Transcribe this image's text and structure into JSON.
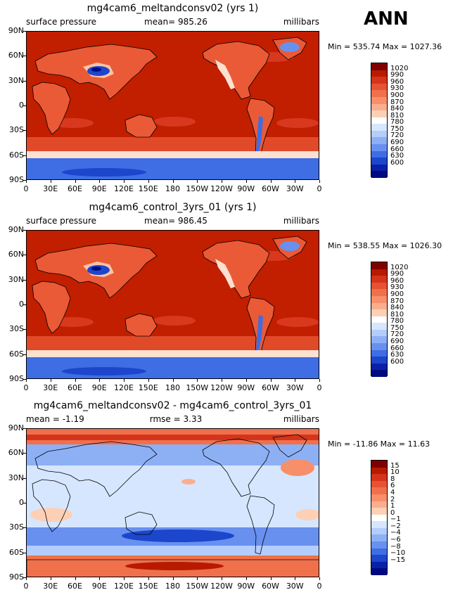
{
  "season": "ANN",
  "axes": {
    "lat_labels": [
      "90N",
      "60N",
      "30N",
      "0",
      "30S",
      "60S",
      "90S"
    ],
    "lon_labels": [
      "0",
      "30E",
      "60E",
      "90E",
      "120E",
      "150E",
      "180",
      "150W",
      "120W",
      "90W",
      "60W",
      "30W",
      "0"
    ]
  },
  "panels": [
    {
      "title": "mg4cam6_meltandconsv02 (yrs 1)",
      "left_label": "surface pressure",
      "center_label": "mean=  985.26",
      "right_label": "millibars",
      "minmax": "Min = 535.74  Max = 1027.36",
      "kind": "field",
      "legend_levels": [
        "1020",
        "990",
        "960",
        "930",
        "900",
        "870",
        "840",
        "810",
        "780",
        "750",
        "720",
        "690",
        "660",
        "630",
        "600"
      ],
      "legend_colors": [
        "#800000",
        "#b81a00",
        "#d4341c",
        "#e85232",
        "#f0704c",
        "#f78f6a",
        "#fbae8e",
        "#fdd0b6",
        "#ffffff",
        "#d6e6ff",
        "#b3cdfc",
        "#8db0f5",
        "#6890ef",
        "#3f6de4",
        "#1c46cc",
        "#0a20a8",
        "#000a80"
      ]
    },
    {
      "title": "mg4cam6_control_3yrs_01 (yrs 1)",
      "left_label": "surface pressure",
      "center_label": "mean=  986.45",
      "right_label": "millibars",
      "minmax": "Min = 538.55  Max = 1026.30",
      "kind": "field",
      "legend_levels": [
        "1020",
        "990",
        "960",
        "930",
        "900",
        "870",
        "840",
        "810",
        "780",
        "750",
        "720",
        "690",
        "660",
        "630",
        "600"
      ],
      "legend_colors": [
        "#800000",
        "#b81a00",
        "#d4341c",
        "#e85232",
        "#f0704c",
        "#f78f6a",
        "#fbae8e",
        "#fdd0b6",
        "#ffffff",
        "#d6e6ff",
        "#b3cdfc",
        "#8db0f5",
        "#6890ef",
        "#3f6de4",
        "#1c46cc",
        "#0a20a8",
        "#000a80"
      ]
    },
    {
      "title": "mg4cam6_meltandconsv02 - mg4cam6_control_3yrs_01",
      "left_label": "mean =   -1.19",
      "center_label": "rmse =    3.33",
      "right_label": "millibars",
      "minmax": "Min = -11.86  Max =  11.63",
      "kind": "diff",
      "legend_levels": [
        "15",
        "10",
        "8",
        "6",
        "4",
        "2",
        "1",
        "0",
        "−1",
        "−2",
        "−4",
        "−6",
        "−8",
        "−10",
        "−15"
      ],
      "legend_colors": [
        "#800000",
        "#b81a00",
        "#d4341c",
        "#e85232",
        "#f0704c",
        "#f78f6a",
        "#fbae8e",
        "#fdd0b6",
        "#ffffff",
        "#d6e6ff",
        "#b3cdfc",
        "#8db0f5",
        "#6890ef",
        "#3f6de4",
        "#1c46cc",
        "#0a20a8",
        "#000a80"
      ]
    }
  ]
}
